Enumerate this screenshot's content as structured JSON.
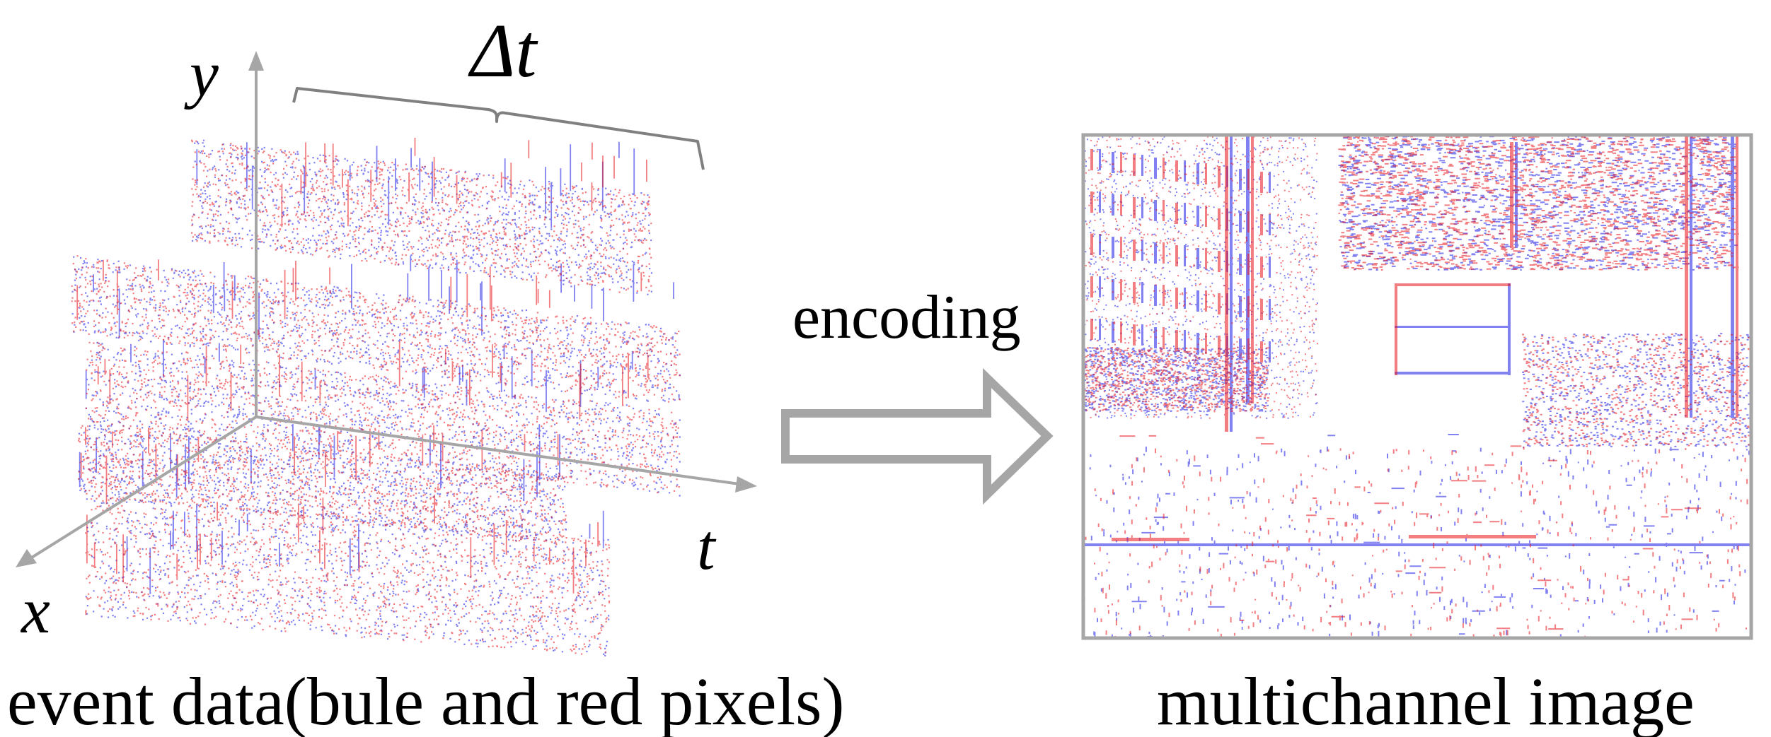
{
  "axes": {
    "x_label": "x",
    "y_label": "y",
    "t_label": "t"
  },
  "window_label": "Δt",
  "arrow_label": "encoding",
  "captions": {
    "left": "event data(bule and red pixels)",
    "right": "multichannel image"
  },
  "colors": {
    "axis": "#a6a6a6",
    "bracket": "#808080",
    "arrow": "#a6a6a6",
    "frame": "#a6a6a6",
    "event_positive": "#e8141c",
    "event_negative": "#1a1ae6",
    "text": "#000000"
  }
}
